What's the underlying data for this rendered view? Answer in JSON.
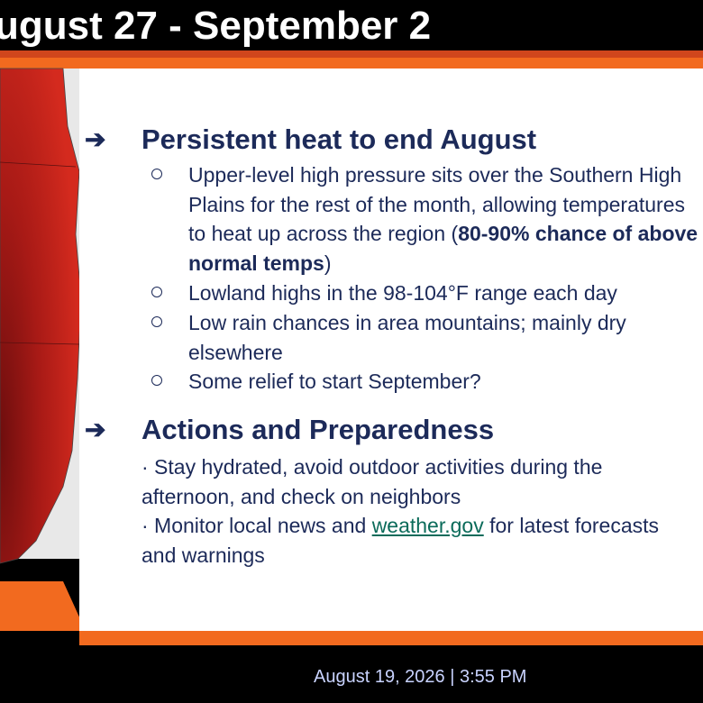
{
  "header": {
    "title": "ugust 27 - September 2"
  },
  "sections": [
    {
      "heading": "Persistent heat to end August",
      "bullets": [
        {
          "text": "Upper-level high pressure sits over the Southern High Plains for the rest of the month, allowing temperatures to heat up across the region (",
          "bold": "80-90% chance of above normal temps",
          "after": ")"
        },
        {
          "text": "Lowland highs in the 98-104°F range each day"
        },
        {
          "text": "Low rain chances in area mountains; mainly dry elsewhere"
        },
        {
          "text": "Some relief to start September?"
        }
      ]
    },
    {
      "heading": "Actions and Preparedness",
      "bullets": [
        {
          "text": "· Stay hydrated, avoid outdoor activities during the afternoon, and check on neighbors"
        },
        {
          "text": "· Monitor local news and ",
          "link": "weather.gov",
          "after": " for latest forecasts and warnings"
        }
      ]
    }
  ],
  "footer": {
    "timestamp": "August 19, 2026 | 3:55 PM"
  }
}
